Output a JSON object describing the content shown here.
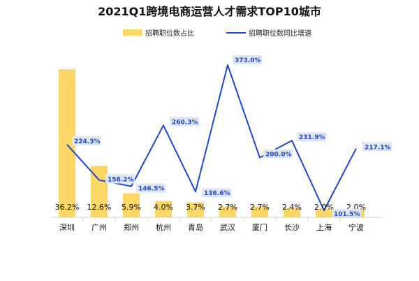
{
  "chart_data": {
    "type": "bar",
    "title": "2021Q1跨境电商运营人才需求TOP10城市",
    "legend_position": "top",
    "categories": [
      "深圳",
      "广州",
      "郑州",
      "杭州",
      "青岛",
      "武汉",
      "厦门",
      "长沙",
      "上海",
      "宁波"
    ],
    "series": [
      {
        "name": "招聘职位数占比",
        "type": "bar",
        "color": "#fdd866",
        "values": [
          36.2,
          12.6,
          5.9,
          4.0,
          3.7,
          2.7,
          2.7,
          2.4,
          2.0,
          2.0
        ],
        "labels": [
          "36.2%",
          "12.6%",
          "5.9%",
          "4.0%",
          "3.7%",
          "2.7%",
          "2.7%",
          "2.4%",
          "2.0%",
          "2.0%"
        ]
      },
      {
        "name": "招聘职位数同比增速",
        "type": "line",
        "color": "#2046c9",
        "values": [
          224.3,
          158.2,
          146.5,
          260.3,
          136.6,
          373.0,
          200.0,
          231.9,
          101.5,
          217.1
        ],
        "labels": [
          "224.3%",
          "158.2%",
          "146.5%",
          "260.3%",
          "136.6%",
          "373.0%",
          "200.0%",
          "231.9%",
          "101.5%",
          "217.1%"
        ]
      }
    ],
    "grid": false
  }
}
